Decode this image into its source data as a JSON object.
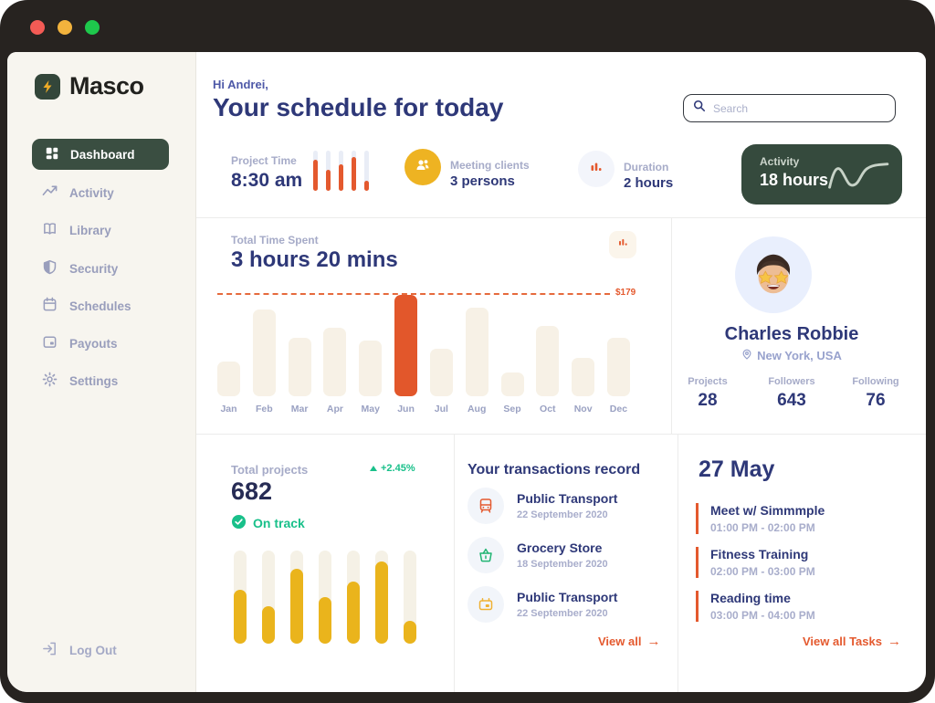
{
  "window": {
    "traffic_lights": {
      "close": "#f45b55",
      "minimize": "#f2b33d",
      "zoom": "#1ec84c"
    }
  },
  "sidebar": {
    "logo_text": "Masco",
    "items": [
      {
        "label": "Dashboard",
        "icon": "grid-icon",
        "active": true
      },
      {
        "label": "Activity",
        "icon": "trend-icon",
        "active": false
      },
      {
        "label": "Library",
        "icon": "book-icon",
        "active": false
      },
      {
        "label": "Security",
        "icon": "shield-icon",
        "active": false
      },
      {
        "label": "Schedules",
        "icon": "calendar-icon",
        "active": false
      },
      {
        "label": "Payouts",
        "icon": "wallet-icon",
        "active": false
      },
      {
        "label": "Settings",
        "icon": "gear-icon",
        "active": false
      }
    ],
    "logout_label": "Log Out"
  },
  "header": {
    "greeting": "Hi Andrei,",
    "title": "Your schedule for today",
    "search_placeholder": "Search"
  },
  "stats": {
    "project_time": {
      "label": "Project Time",
      "value": "8:30 am"
    },
    "meeting": {
      "label": "Meeting clients",
      "value": "3 persons",
      "icon": "people-icon"
    },
    "duration": {
      "label": "Duration",
      "value": "2 hours",
      "icon": "bar-chart-icon"
    },
    "activity": {
      "label": "Activity",
      "value": "18 hours"
    }
  },
  "time_spent": {
    "label": "Total Time Spent",
    "value": "3 hours 20 mins",
    "threshold_label": "$179"
  },
  "chart_data": [
    {
      "type": "bar",
      "title": "Total Time Spent by month",
      "categories": [
        "Jan",
        "Feb",
        "Mar",
        "Apr",
        "May",
        "Jun",
        "Jul",
        "Aug",
        "Sep",
        "Oct",
        "Nov",
        "Dec"
      ],
      "values_usd_est": [
        61,
        154,
        104,
        122,
        99,
        179,
        85,
        156,
        41,
        124,
        68,
        104
      ],
      "heights_pct": [
        34,
        86,
        58,
        68,
        55,
        100,
        47,
        87,
        23,
        69,
        38,
        58
      ],
      "highlight_index": 5,
      "threshold": {
        "label": "$179",
        "value": 179,
        "style": "dashed"
      },
      "bar_color": "#f7f1e6",
      "highlight_color": "#e2572b",
      "label_color": "#9aa1c2",
      "grid": false,
      "legend": false
    },
    {
      "type": "bar",
      "title": "Total projects progress bars",
      "values_pct": [
        58,
        40,
        80,
        50,
        67,
        88,
        25
      ],
      "track_color": "#f5f1e6",
      "fill_color": "#eab41c"
    },
    {
      "type": "bar",
      "title": "Project time mini bars",
      "values_pct": [
        78,
        52,
        65,
        85,
        25
      ],
      "track_color": "#e9edf6",
      "fill_color": "#e4592e"
    }
  ],
  "profile": {
    "name": "Charles Robbie",
    "location": "New York, USA",
    "stats": [
      {
        "label": "Projects",
        "value": "28"
      },
      {
        "label": "Followers",
        "value": "643"
      },
      {
        "label": "Following",
        "value": "76"
      }
    ]
  },
  "projects": {
    "label": "Total projects",
    "delta": "+2.45%",
    "value": "682",
    "status": "On track"
  },
  "transactions": {
    "title": "Your transactions record",
    "items": [
      {
        "name": "Public Transport",
        "date": "22 September 2020",
        "icon": "bus-icon",
        "color": "#e4592e"
      },
      {
        "name": "Grocery Store",
        "date": "18 September 2020",
        "icon": "basket-icon",
        "color": "#21b573"
      },
      {
        "name": "Public Transport",
        "date": "22 September 2020",
        "icon": "card-icon",
        "color": "#efb133"
      }
    ],
    "view_all": "View all"
  },
  "tasks": {
    "date": "27 May",
    "items": [
      {
        "name": "Meet w/ Simmmple",
        "time": "01:00 PM - 02:00 PM"
      },
      {
        "name": "Fitness Training",
        "time": "02:00 PM - 03:00 PM"
      },
      {
        "name": "Reading time",
        "time": "03:00 PM - 04:00 PM"
      }
    ],
    "view_all": "View all Tasks"
  },
  "colors": {
    "accent_orange": "#e4592e",
    "accent_yellow": "#eeb322",
    "brand_green_dark": "#354a3d",
    "heading_indigo": "#2e3878",
    "muted_label": "#a6abc8",
    "success_green": "#19c08a",
    "sidebar_bg": "#f7f5ef",
    "frame_dark": "#272320"
  }
}
